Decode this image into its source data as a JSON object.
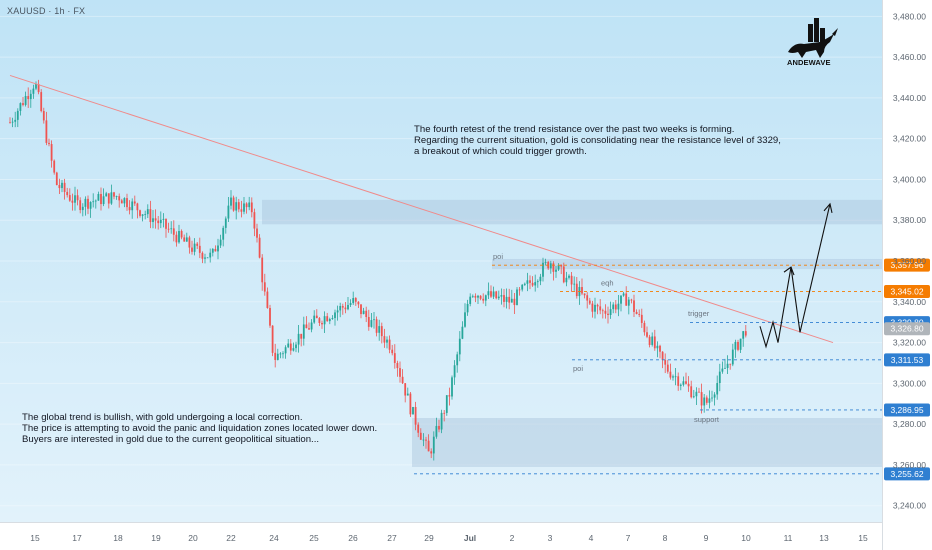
{
  "ticker": "XAUUSD · 1h · FX",
  "logo_text": "ANDEWAVE",
  "notes": {
    "top": "The fourth retest of the trend resistance over the past two weeks is forming.\nRegarding the current situation, gold is consolidating near the resistance level of 3329,\na breakout of which could trigger growth.",
    "bottom": "The global trend is bullish, with gold undergoing a local correction.\nThe price is attempting to avoid the panic and liquidation zones located lower down.\nBuyers are interested in gold due to the current geopolitical situation..."
  },
  "colors": {
    "up": "#26a69a",
    "down": "#ef5350",
    "level_blue": "#2f7fd1",
    "level_orange": "#f57c00",
    "current_price": "#b0b5ba",
    "trendline": "#f08a8a"
  },
  "chart_data": {
    "type": "candlestick",
    "ylim": [
      3232,
      3488
    ],
    "yticks": [
      "3,480.00",
      "3,460.00",
      "3,440.00",
      "3,420.00",
      "3,400.00",
      "3,380.00",
      "3,360.00",
      "3,340.00",
      "3,320.00",
      "3,300.00",
      "3,280.00",
      "3,260.00",
      "3,240.00"
    ],
    "x_labels": [
      "15",
      "17",
      "18",
      "19",
      "20",
      "22",
      "24",
      "25",
      "26",
      "27",
      "29",
      "Jul",
      "2",
      "3",
      "4",
      "7",
      "8",
      "9",
      "10",
      "11",
      "13",
      "15"
    ],
    "price_path": [
      {
        "x": "Jun 13",
        "y": 3428
      },
      {
        "x": "Jun 15",
        "y": 3448
      },
      {
        "x": "Jun 16",
        "y": 3398
      },
      {
        "x": "Jun 17",
        "y": 3388
      },
      {
        "x": "Jun 18",
        "y": 3392
      },
      {
        "x": "Jun 19",
        "y": 3380
      },
      {
        "x": "Jun 20",
        "y": 3366
      },
      {
        "x": "Jun 21",
        "y": 3362
      },
      {
        "x": "Jun 22",
        "y": 3388
      },
      {
        "x": "Jun 23",
        "y": 3385
      },
      {
        "x": "Jun 24",
        "y": 3312
      },
      {
        "x": "Jun 25",
        "y": 3330
      },
      {
        "x": "Jun 26",
        "y": 3340
      },
      {
        "x": "Jun 27",
        "y": 3318
      },
      {
        "x": "Jun 28",
        "y": 3288
      },
      {
        "x": "Jun 29",
        "y": 3265
      },
      {
        "x": "Jun 30",
        "y": 3295
      },
      {
        "x": "Jul 1",
        "y": 3345
      },
      {
        "x": "Jul 2",
        "y": 3340
      },
      {
        "x": "Jul 3",
        "y": 3360
      },
      {
        "x": "Jul 4",
        "y": 3338
      },
      {
        "x": "Jul 5",
        "y": 3335
      },
      {
        "x": "Jul 7",
        "y": 3342
      },
      {
        "x": "Jul 8",
        "y": 3308
      },
      {
        "x": "Jul 9",
        "y": 3290
      },
      {
        "x": "Jul 10",
        "y": 3326.8
      }
    ],
    "levels": [
      {
        "value": "3,357.96",
        "type": "orange"
      },
      {
        "value": "3,345.02",
        "type": "orange"
      },
      {
        "value": "3,329.80",
        "type": "blue"
      },
      {
        "value": "3,326.80",
        "type": "current"
      },
      {
        "value": "3,311.53",
        "type": "blue"
      },
      {
        "value": "3,286.95",
        "type": "blue"
      },
      {
        "value": "3,255.62",
        "type": "blue"
      }
    ],
    "zone_labels": [
      "poi",
      "eqh",
      "trigger",
      "poi",
      "support"
    ],
    "zones": [
      {
        "from": 3378,
        "to": 3390
      },
      {
        "from": 3356,
        "to": 3361
      },
      {
        "from": 3259,
        "to": 3283
      }
    ],
    "trendline": {
      "from": {
        "x": "Jun 13",
        "y": 3451
      },
      "to": {
        "x": "Jul 11",
        "y": 3320
      }
    },
    "projection": [
      {
        "x": "Jul 10",
        "y": 3328
      },
      {
        "x": "Jul 10",
        "y": 3318
      },
      {
        "x": "Jul 10",
        "y": 3330
      },
      {
        "x": "Jul 10",
        "y": 3320
      },
      {
        "x": "Jul 11",
        "y": 3357
      },
      {
        "x": "Jul 11",
        "y": 3325
      },
      {
        "x": "Jul 13",
        "y": 3388
      }
    ]
  }
}
